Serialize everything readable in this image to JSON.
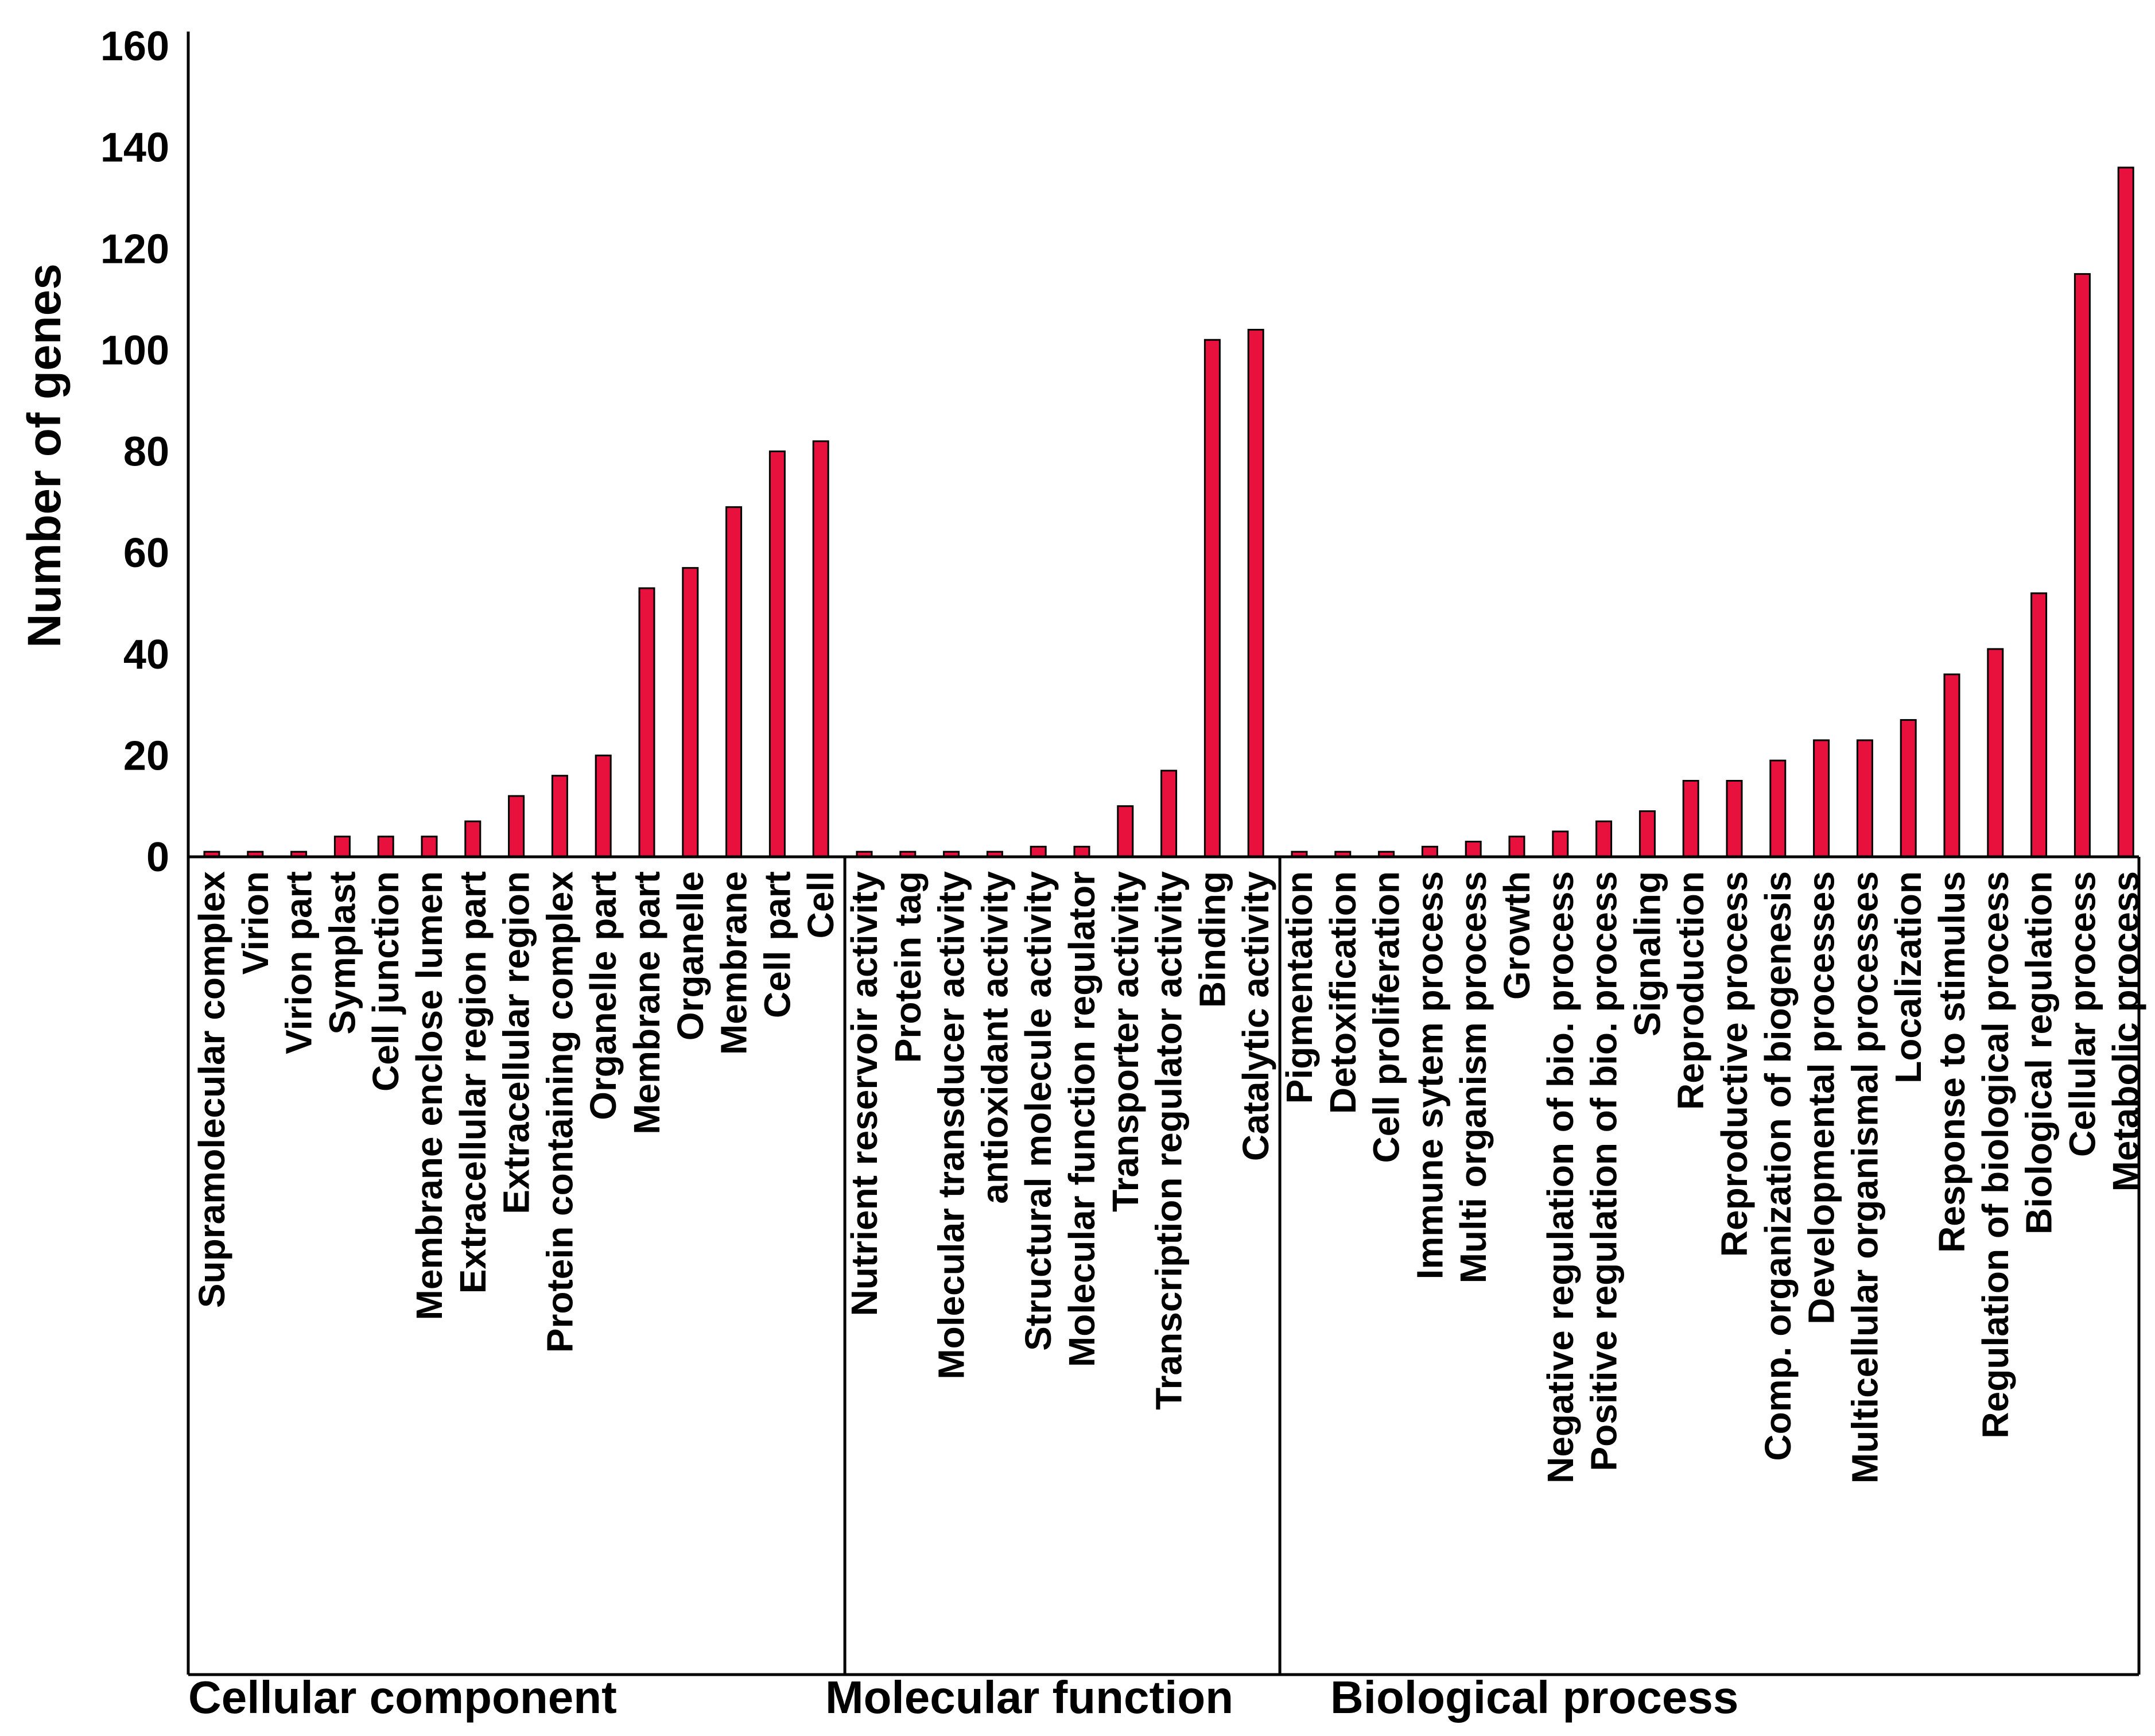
{
  "chart_data": {
    "type": "bar",
    "title": "",
    "xlabel": "",
    "ylabel": "Number of genes",
    "ylim": [
      0,
      160
    ],
    "yticks": [
      0,
      20,
      40,
      60,
      80,
      100,
      120,
      140,
      160
    ],
    "bar_color": "#e8103c",
    "groups": [
      {
        "name": "Cellular component",
        "categories": [
          "Supramolecular complex",
          "Virion",
          "Virion part",
          "Symplast",
          "Cell junction",
          "Membrane enclose lumen",
          "Extracellular region part",
          "Extracellular region",
          "Protein containing complex",
          "Organelle part",
          "Membrane part",
          "Organelle",
          "Membrane",
          "Cell part",
          "Cell"
        ],
        "values": [
          1,
          1,
          1,
          4,
          4,
          4,
          7,
          12,
          16,
          20,
          53,
          57,
          69,
          80,
          82
        ]
      },
      {
        "name": "Molecular function",
        "categories": [
          "Nutrient reservoir activity",
          "Protein tag",
          "Molecular transducer activity",
          "antioxidant activity",
          "Structural molecule  activity",
          "Molecular function regulator",
          "Transporter activity",
          "Transcription regulator activity",
          "Binding",
          "Catalytic activity"
        ],
        "values": [
          1,
          1,
          1,
          1,
          2,
          2,
          10,
          17,
          102,
          104
        ]
      },
      {
        "name": "Biological process",
        "categories": [
          "Pigmentation",
          "Detoxification",
          "Cell proliferation",
          "Immune sytem process",
          "Multi organism process",
          "Growth",
          "Negative regulation of bio. process",
          "Positive regulation of bio. process",
          "Signaling",
          "Reproduction",
          "Reproductive process",
          "Comp. organization of biogenesis",
          "Developmental processes",
          "Multicellular organismal processes",
          "Localization",
          "Response to stimulus",
          "Regulation of biological process",
          "Biological regulation",
          "Cellular process",
          "Metabolic process"
        ],
        "values": [
          1,
          1,
          1,
          2,
          3,
          4,
          5,
          7,
          9,
          15,
          15,
          19,
          23,
          23,
          27,
          36,
          41,
          52,
          115,
          136
        ]
      }
    ]
  }
}
